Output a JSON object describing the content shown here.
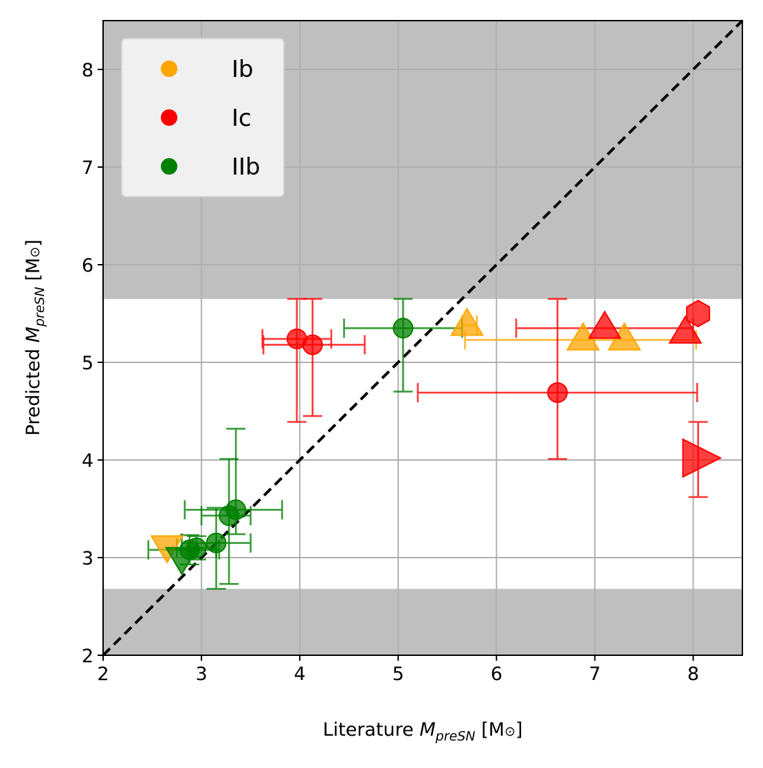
{
  "chart_data": {
    "type": "scatter",
    "xlabel": {
      "prefix": "Literature ",
      "var": "M",
      "sub": "preSN",
      "unit_open": " [M",
      "unit_sym": "⊙",
      "unit_close": "]"
    },
    "ylabel": {
      "prefix": "Predicted ",
      "var": "M",
      "sub": "preSN",
      "unit_open": " [M",
      "unit_sym": "⊙",
      "unit_close": "]"
    },
    "xlim": [
      2,
      8.5
    ],
    "ylim": [
      2,
      8.5
    ],
    "xticks": [
      "2",
      "3",
      "4",
      "5",
      "6",
      "7",
      "8"
    ],
    "yticks": [
      "2",
      "3",
      "4",
      "5",
      "6",
      "7",
      "8"
    ],
    "grid": true,
    "shaded_bands": [
      {
        "y_from": 5.65,
        "y_to": 8.5,
        "color": "#bfbfbf"
      },
      {
        "y_from": 2.0,
        "y_to": 2.68,
        "color": "#bfbfbf"
      }
    ],
    "reference_line": {
      "from": [
        2,
        2
      ],
      "to": [
        8.5,
        8.5
      ],
      "style": "dashed",
      "color": "#000000"
    },
    "legend": {
      "placement": "top-left",
      "entries": [
        {
          "label": "Ib",
          "color": "#ffa500"
        },
        {
          "label": "Ic",
          "color": "#ff0000"
        },
        {
          "label": "IIb",
          "color": "#008000"
        }
      ]
    },
    "series": [
      {
        "legend": "Ib",
        "color": "#ffa500",
        "points": [
          {
            "x": 2.65,
            "y": 3.12,
            "marker": "triangle-down"
          },
          {
            "x": 5.7,
            "y": 5.38,
            "marker": "triangle-up",
            "xerr": [
              0.05,
              0.1
            ]
          },
          {
            "x": 6.88,
            "y": 5.23,
            "marker": "triangle-up",
            "xerr": [
              1.2,
              1.15
            ]
          },
          {
            "x": 7.3,
            "y": 5.23,
            "marker": "triangle-up"
          }
        ]
      },
      {
        "legend": "Ic",
        "color": "#ff0000",
        "points": [
          {
            "x": 3.97,
            "y": 5.24,
            "marker": "circle",
            "xerr": [
              0.35,
              0.35
            ],
            "yerr": [
              0.85,
              0.41
            ]
          },
          {
            "x": 4.13,
            "y": 5.18,
            "marker": "circle",
            "xerr": [
              0.5,
              0.53
            ],
            "yerr": [
              0.73,
              0.47
            ]
          },
          {
            "x": 6.62,
            "y": 4.69,
            "marker": "circle",
            "xerr": [
              1.42,
              1.42
            ],
            "yerr": [
              0.68,
              0.96
            ]
          },
          {
            "x": 7.1,
            "y": 5.35,
            "marker": "triangle-up",
            "xerr": [
              0.9,
              0.9
            ]
          },
          {
            "x": 7.92,
            "y": 5.3,
            "marker": "triangle-up"
          },
          {
            "x": 8.05,
            "y": 5.5,
            "marker": "hexagon"
          },
          {
            "x": 8.05,
            "y": 4.02,
            "marker": "triangle-right",
            "yerr": [
              0.4,
              0.37
            ]
          }
        ]
      },
      {
        "legend": "IIb",
        "color": "#008000",
        "points": [
          {
            "x": 2.8,
            "y": 3.0,
            "marker": "triangle-down"
          },
          {
            "x": 2.88,
            "y": 3.08,
            "marker": "circle",
            "xerr": [
              0.42,
              0.3
            ],
            "yerr": [
              0.15,
              0.15
            ]
          },
          {
            "x": 2.95,
            "y": 3.1,
            "marker": "circle",
            "xerr": [
              0.2,
              0.2
            ],
            "yerr": [
              0.12,
              0.12
            ]
          },
          {
            "x": 3.15,
            "y": 3.15,
            "marker": "circle",
            "xerr": [
              0.35,
              0.35
            ],
            "yerr": [
              0.47,
              0.36
            ]
          },
          {
            "x": 3.28,
            "y": 3.43,
            "marker": "circle",
            "xerr": [
              0.28,
              0.22
            ],
            "yerr": [
              0.7,
              0.58
            ]
          },
          {
            "x": 3.35,
            "y": 3.49,
            "marker": "circle",
            "xerr": [
              0.52,
              0.47
            ],
            "yerr": [
              0.25,
              0.83
            ]
          },
          {
            "x": 5.05,
            "y": 5.35,
            "marker": "circle",
            "xerr": [
              0.6,
              0.6
            ],
            "yerr": [
              0.65,
              0.3
            ]
          }
        ]
      }
    ]
  }
}
